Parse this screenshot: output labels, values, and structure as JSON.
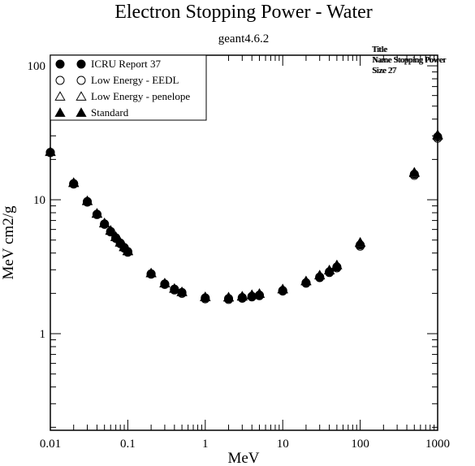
{
  "chart_data": {
    "type": "scatter",
    "title": "Electron Stopping Power - Water",
    "subtitle": "geant4.6.2",
    "xlabel": "MeV",
    "ylabel": "MeV cm2/g",
    "xscale": "log",
    "yscale": "log",
    "xlim": [
      0.01,
      1000
    ],
    "ylim": [
      0.19,
      120
    ],
    "xticks": [
      {
        "value": 0.01,
        "label": "0.01"
      },
      {
        "value": 0.1,
        "label": "0.1"
      },
      {
        "value": 1,
        "label": "1"
      },
      {
        "value": 10,
        "label": "10"
      },
      {
        "value": 100,
        "label": "100"
      },
      {
        "value": 1000,
        "label": "1000"
      }
    ],
    "yticks": [
      {
        "value": 1,
        "label": "1"
      },
      {
        "value": 10,
        "label": "10"
      },
      {
        "value": 100,
        "label": "100"
      }
    ],
    "grid": false,
    "legend_position": "top-left",
    "stats_box": {
      "position": "top-right",
      "lines": [
        "Title",
        "Name Stopping Power",
        "Size 27"
      ]
    },
    "series": [
      {
        "name": "ICRU Report 37",
        "marker": "filled-circle",
        "x": [
          0.01,
          0.02,
          0.03,
          0.04,
          0.05,
          0.06,
          0.07,
          0.08,
          0.09,
          0.1,
          0.2,
          0.3,
          0.4,
          0.5,
          1,
          2,
          3,
          4,
          5,
          10,
          20,
          30,
          40,
          50,
          100,
          500,
          1000
        ],
        "y": [
          22.6,
          13.2,
          9.7,
          7.8,
          6.6,
          5.8,
          5.2,
          4.75,
          4.4,
          4.1,
          2.8,
          2.35,
          2.15,
          2.03,
          1.85,
          1.83,
          1.86,
          1.9,
          1.94,
          2.1,
          2.4,
          2.65,
          2.9,
          3.15,
          4.6,
          15.5,
          29.5
        ]
      },
      {
        "name": "Low Energy - EEDL",
        "marker": "open-circle",
        "x": [
          0.01,
          0.02,
          0.03,
          0.04,
          0.05,
          0.06,
          0.07,
          0.08,
          0.09,
          0.1,
          0.2,
          0.3,
          0.4,
          0.5,
          1,
          2,
          3,
          4,
          5,
          10,
          20,
          30,
          40,
          50,
          100,
          500,
          1000
        ],
        "y": [
          22.5,
          13.1,
          9.6,
          7.75,
          6.55,
          5.75,
          5.15,
          4.7,
          4.35,
          4.05,
          2.78,
          2.33,
          2.12,
          2.0,
          1.82,
          1.8,
          1.84,
          1.88,
          1.92,
          2.08,
          2.38,
          2.62,
          2.86,
          3.1,
          4.5,
          15.2,
          28.8
        ]
      },
      {
        "name": "Low Energy - penelope",
        "marker": "open-triangle",
        "x": [
          0.01,
          0.02,
          0.03,
          0.04,
          0.05,
          0.06,
          0.07,
          0.08,
          0.09,
          0.1,
          0.2,
          0.3,
          0.4,
          0.5,
          1,
          2,
          3,
          4,
          5,
          10,
          20,
          30,
          40,
          50,
          100,
          500,
          1000
        ],
        "y": [
          22.8,
          13.4,
          9.8,
          7.9,
          6.7,
          5.9,
          5.3,
          4.8,
          4.45,
          4.15,
          2.83,
          2.38,
          2.17,
          2.05,
          1.88,
          1.87,
          1.9,
          1.95,
          1.99,
          2.15,
          2.47,
          2.73,
          2.98,
          3.25,
          4.75,
          15.8,
          30.0
        ]
      },
      {
        "name": "Standard",
        "marker": "filled-triangle",
        "x": [
          0.01,
          0.02,
          0.03,
          0.04,
          0.05,
          0.06,
          0.07,
          0.08,
          0.09,
          0.1,
          0.2,
          0.3,
          0.4,
          0.5,
          1,
          2,
          3,
          4,
          5,
          10,
          20,
          30,
          40,
          50,
          100,
          500,
          1000
        ],
        "y": [
          22.7,
          13.3,
          9.75,
          7.85,
          6.65,
          5.85,
          5.25,
          4.78,
          4.42,
          4.12,
          2.82,
          2.37,
          2.16,
          2.04,
          1.87,
          1.86,
          1.89,
          1.94,
          1.98,
          2.14,
          2.46,
          2.72,
          2.97,
          3.24,
          4.8,
          16.0,
          30.5
        ]
      }
    ]
  }
}
